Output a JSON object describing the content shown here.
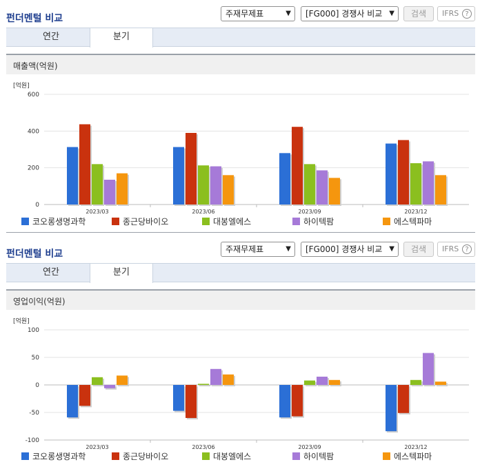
{
  "sections": [
    {
      "header": {
        "title": "펀더멘털 비교",
        "statement_select": "주재무제표",
        "compare_select": "[FG000] 경쟁사 비교",
        "search_label": "검색",
        "ifrs_label": "IFRS",
        "help_label": "?"
      },
      "tabs": [
        "연간",
        "분기"
      ],
      "active_tab": 1,
      "panel_title": "매출액(억원)",
      "chart_data": {
        "type": "bar",
        "title": "매출액(억원)",
        "unit_label": "[억원]",
        "categories": [
          "2023/03",
          "2023/06",
          "2023/09",
          "2023/12"
        ],
        "ylim": [
          0,
          600
        ],
        "yticks": [
          0,
          200,
          400,
          600
        ],
        "series": [
          {
            "name": "코오롱생명과학",
            "color": "#2b6fd6",
            "values": [
              313,
              313,
              280,
              332
            ]
          },
          {
            "name": "종근당바이오",
            "color": "#c9320e",
            "values": [
              437,
              390,
              423,
              351
            ]
          },
          {
            "name": "대봉엘에스",
            "color": "#8bbf1f",
            "values": [
              220,
              213,
              220,
              225
            ]
          },
          {
            "name": "하이텍팜",
            "color": "#a67ad8",
            "values": [
              135,
              208,
              186,
              235
            ]
          },
          {
            "name": "에스텍파마",
            "color": "#f5960e",
            "values": [
              170,
              160,
              145,
              160
            ]
          }
        ]
      }
    },
    {
      "header": {
        "title": "펀더멘털 비교",
        "statement_select": "주재무제표",
        "compare_select": "[FG000] 경쟁사 비교",
        "search_label": "검색",
        "ifrs_label": "IFRS",
        "help_label": "?"
      },
      "tabs": [
        "연간",
        "분기"
      ],
      "active_tab": 1,
      "panel_title": "영업이익(억원)",
      "chart_data": {
        "type": "bar",
        "title": "영업이익(억원)",
        "unit_label": "[억원]",
        "categories": [
          "2023/03",
          "2023/06",
          "2023/09",
          "2023/12"
        ],
        "ylim": [
          -100,
          100
        ],
        "yticks": [
          -100,
          -50,
          0,
          50,
          100
        ],
        "series": [
          {
            "name": "코오롱생명과학",
            "color": "#2b6fd6",
            "values": [
              -59,
              -47,
              -59,
              -84
            ]
          },
          {
            "name": "종근당바이오",
            "color": "#c9320e",
            "values": [
              -38,
              -60,
              -57,
              -51
            ]
          },
          {
            "name": "대봉엘에스",
            "color": "#8bbf1f",
            "values": [
              14,
              2,
              8,
              9
            ]
          },
          {
            "name": "하이텍팜",
            "color": "#a67ad8",
            "values": [
              -6,
              29,
              15,
              58
            ]
          },
          {
            "name": "에스텍파마",
            "color": "#f5960e",
            "values": [
              17,
              19,
              9,
              6
            ]
          }
        ]
      }
    }
  ]
}
